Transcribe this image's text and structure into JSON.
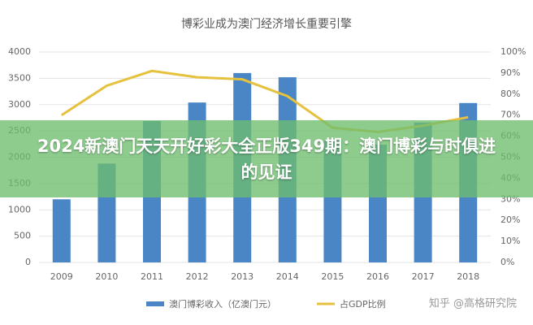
{
  "chart_data": {
    "type": "bar_line",
    "title": "博彩业成为澳门经济增长重要引擎",
    "categories": [
      "2009",
      "2010",
      "2011",
      "2012",
      "2013",
      "2014",
      "2015",
      "2016",
      "2017",
      "2018"
    ],
    "series": [
      {
        "name": "澳门博彩收入（亿澳门元）",
        "type": "bar",
        "color": "#4a86c5",
        "values": [
          1200,
          1880,
          2690,
          3040,
          3600,
          3520,
          2310,
          2240,
          2660,
          3030
        ]
      },
      {
        "name": "占GDP比例",
        "type": "line",
        "axis": "y2",
        "color": "#e6c13d",
        "values": [
          70,
          84,
          91,
          88,
          87,
          79,
          64,
          62,
          65,
          69
        ]
      }
    ],
    "ylim": [
      0,
      4000
    ],
    "yticks": [
      0,
      500,
      1000,
      1500,
      2000,
      2500,
      3000,
      3500,
      4000
    ],
    "y2lim": [
      0,
      100
    ],
    "y2ticks": [
      {
        "value": 0,
        "label": "0%"
      },
      {
        "value": 10,
        "label": "10%"
      },
      {
        "value": 20,
        "label": "20%"
      },
      {
        "value": 30,
        "label": "30%"
      },
      {
        "value": 40,
        "label": "40%"
      },
      {
        "value": 50,
        "label": "50%"
      },
      {
        "value": 60,
        "label": "60%"
      },
      {
        "value": 70,
        "label": "70%"
      },
      {
        "value": 80,
        "label": "80%"
      },
      {
        "value": 90,
        "label": "90%"
      },
      {
        "value": 100,
        "label": "100%"
      }
    ],
    "grid": true
  },
  "banner": "2024新澳门天天开好彩大全正版349期：澳门博彩与时俱进的见证",
  "watermark": "知乎 @高格研究院"
}
